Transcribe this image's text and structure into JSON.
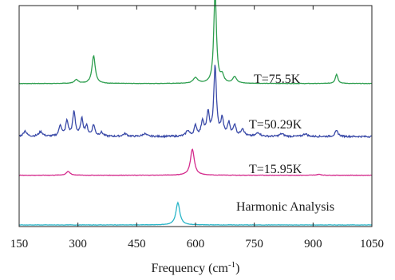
{
  "chart_data": {
    "type": "line",
    "xlabel": "Frequency (cm⁻¹)",
    "xlabel_main": "Frequency (cm",
    "xlabel_sup": "-1",
    "xlabel_close": ")",
    "xlim": [
      150,
      1050
    ],
    "x_ticks": [
      150,
      300,
      450,
      600,
      750,
      900,
      1050
    ],
    "x_tick_labels": [
      "150",
      "300",
      "450",
      "600",
      "750",
      "900",
      "1050"
    ],
    "y_ticks_shown": false,
    "series": [
      {
        "name": "T=75.5K",
        "color": "#2e9e4f",
        "baseline_rel": 0.64,
        "peaks": [
          {
            "x": 340,
            "h": 0.3,
            "w": 5
          },
          {
            "x": 296,
            "h": 0.04,
            "w": 6
          },
          {
            "x": 600,
            "h": 0.06,
            "w": 7
          },
          {
            "x": 650,
            "h": 1.0,
            "w": 4
          },
          {
            "x": 668,
            "h": 0.08,
            "w": 5
          },
          {
            "x": 700,
            "h": 0.07,
            "w": 6
          },
          {
            "x": 960,
            "h": 0.1,
            "w": 4
          }
        ]
      },
      {
        "name": "T=50.29K",
        "color": "#3a4aa8",
        "baseline_rel": 0.4,
        "peaks": [
          {
            "x": 165,
            "h": 0.06,
            "w": 5
          },
          {
            "x": 205,
            "h": 0.05,
            "w": 6
          },
          {
            "x": 255,
            "h": 0.12,
            "w": 4
          },
          {
            "x": 272,
            "h": 0.16,
            "w": 4
          },
          {
            "x": 290,
            "h": 0.26,
            "w": 4
          },
          {
            "x": 310,
            "h": 0.18,
            "w": 4
          },
          {
            "x": 322,
            "h": 0.1,
            "w": 4
          },
          {
            "x": 340,
            "h": 0.12,
            "w": 4
          },
          {
            "x": 360,
            "h": 0.04,
            "w": 5
          },
          {
            "x": 420,
            "h": 0.03,
            "w": 6
          },
          {
            "x": 470,
            "h": 0.03,
            "w": 6
          },
          {
            "x": 580,
            "h": 0.06,
            "w": 5
          },
          {
            "x": 600,
            "h": 0.11,
            "w": 4
          },
          {
            "x": 618,
            "h": 0.16,
            "w": 4
          },
          {
            "x": 632,
            "h": 0.24,
            "w": 4
          },
          {
            "x": 650,
            "h": 0.75,
            "w": 4
          },
          {
            "x": 668,
            "h": 0.18,
            "w": 4
          },
          {
            "x": 685,
            "h": 0.14,
            "w": 4
          },
          {
            "x": 700,
            "h": 0.12,
            "w": 4
          },
          {
            "x": 720,
            "h": 0.08,
            "w": 5
          },
          {
            "x": 760,
            "h": 0.04,
            "w": 6
          },
          {
            "x": 820,
            "h": 0.03,
            "w": 6
          },
          {
            "x": 880,
            "h": 0.03,
            "w": 6
          },
          {
            "x": 960,
            "h": 0.06,
            "w": 5
          }
        ]
      },
      {
        "name": "T=15.95K",
        "color": "#d42a8c",
        "baseline_rel": 0.225,
        "peaks": [
          {
            "x": 275,
            "h": 0.04,
            "w": 6
          },
          {
            "x": 592,
            "h": 0.28,
            "w": 6
          },
          {
            "x": 915,
            "h": 0.01,
            "w": 6
          }
        ]
      },
      {
        "name": "Harmonic Analysis",
        "color": "#29b5c8",
        "baseline_rel": 0.0,
        "peaks": [
          {
            "x": 555,
            "h": 0.24,
            "w": 6
          }
        ]
      }
    ]
  },
  "annotations": {
    "t75": "T=75.5K",
    "t50": "T=50.29K",
    "t15": "T=15.95K",
    "harmonic": "Harmonic Analysis"
  }
}
